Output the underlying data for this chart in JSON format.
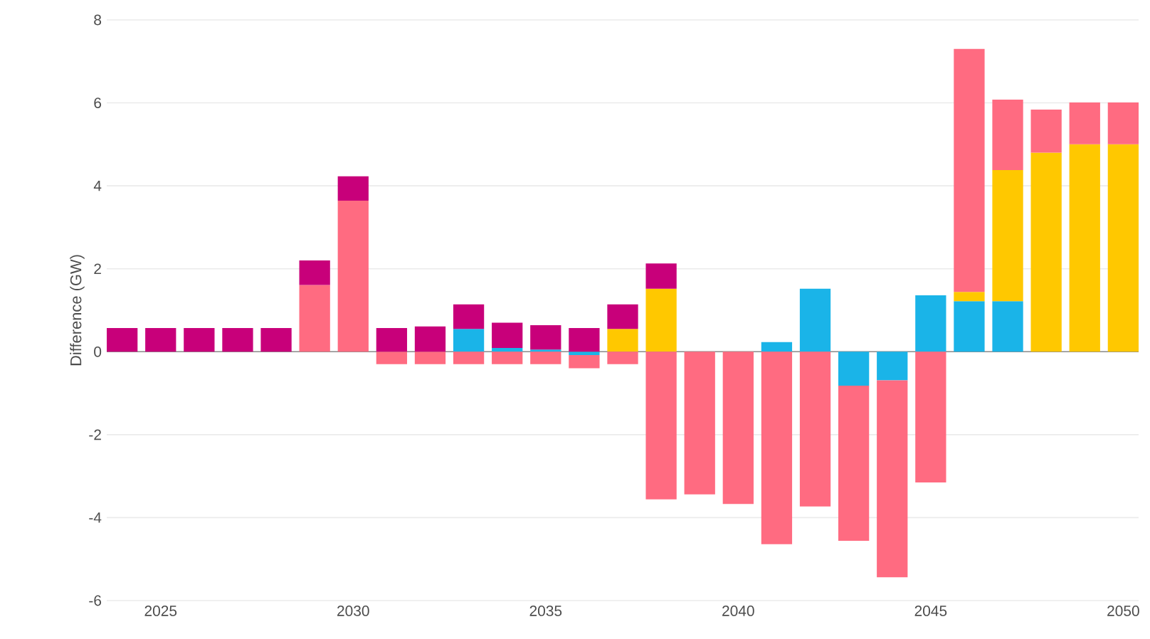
{
  "chart_data": {
    "type": "bar",
    "stacked": true,
    "ylabel": "Difference (GW)",
    "x": [
      2024,
      2025,
      2026,
      2027,
      2028,
      2029,
      2030,
      2031,
      2032,
      2033,
      2034,
      2035,
      2036,
      2037,
      2038,
      2039,
      2040,
      2041,
      2042,
      2043,
      2044,
      2045,
      2046,
      2047,
      2048,
      2049,
      2050
    ],
    "xlim": [
      2023.6,
      2050.4
    ],
    "xticks": [
      2025,
      2030,
      2035,
      2040,
      2045,
      2050
    ],
    "ylim": [
      -6,
      8
    ],
    "yticks": [
      -6,
      -4,
      -2,
      0,
      2,
      4,
      6,
      8
    ],
    "grid": "y",
    "series": [
      {
        "color": "#1ab4e8",
        "values": [
          0,
          0,
          0,
          0,
          0,
          0,
          0,
          0,
          0,
          0.55,
          0.09,
          0.05,
          -0.08,
          0,
          0,
          0,
          0,
          0.23,
          1.52,
          -0.82,
          -0.69,
          1.36,
          1.22,
          1.22,
          0,
          0,
          0
        ]
      },
      {
        "color": "#ffc800",
        "values": [
          0,
          0,
          0,
          0,
          0,
          0,
          0,
          0,
          0,
          0,
          0,
          0,
          0,
          0.55,
          1.52,
          0,
          0,
          0,
          0,
          0,
          0,
          0,
          0.22,
          3.16,
          4.8,
          5.0,
          5.0
        ]
      },
      {
        "color": "#ff6b81",
        "values": [
          0,
          0,
          0,
          0,
          0,
          1.61,
          3.64,
          -0.3,
          -0.3,
          -0.3,
          -0.3,
          -0.3,
          -0.32,
          -0.3,
          -3.56,
          -3.44,
          -3.67,
          -4.64,
          -3.73,
          -3.74,
          -4.75,
          -3.15,
          5.86,
          1.7,
          1.04,
          1.01,
          1.01
        ]
      },
      {
        "color": "#c8007a",
        "values": [
          0.57,
          0.57,
          0.57,
          0.57,
          0.57,
          0.59,
          0.59,
          0.57,
          0.61,
          0.59,
          0.61,
          0.59,
          0.57,
          0.59,
          0.61,
          0,
          0,
          0,
          0,
          0,
          0,
          0,
          0,
          0,
          0,
          0,
          0
        ]
      }
    ]
  }
}
